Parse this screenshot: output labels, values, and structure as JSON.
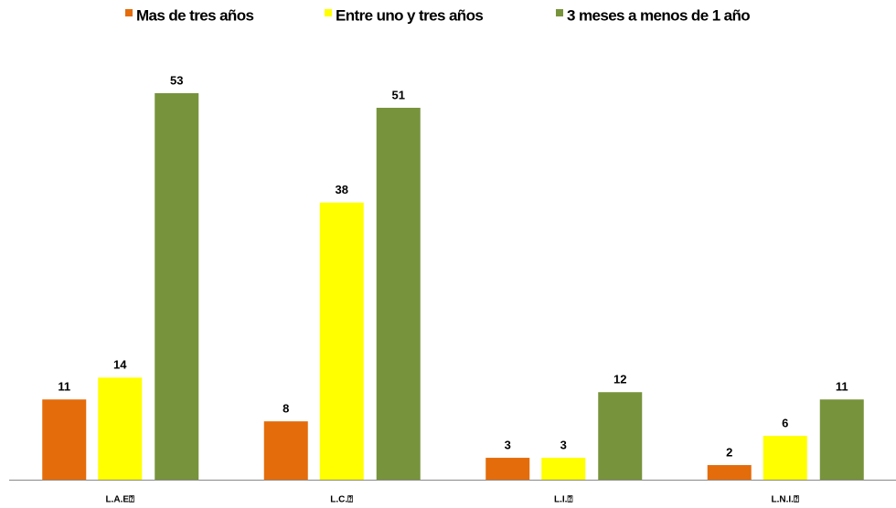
{
  "chart_data": {
    "type": "bar",
    "categories": [
      "L.A.E⍰",
      "L.C.⍰",
      "L.I.⍰",
      "L.N.I.⍰"
    ],
    "series": [
      {
        "name": "Mas de tres años",
        "color": "#e46c0a",
        "values": [
          11,
          8,
          3,
          2
        ]
      },
      {
        "name": "Entre uno y tres años",
        "color": "#ffff00",
        "values": [
          14,
          38,
          3,
          6
        ]
      },
      {
        "name": "3 meses a menos de 1 año",
        "color": "#77933c",
        "values": [
          53,
          51,
          12,
          11
        ]
      }
    ],
    "legend": "top"
  }
}
